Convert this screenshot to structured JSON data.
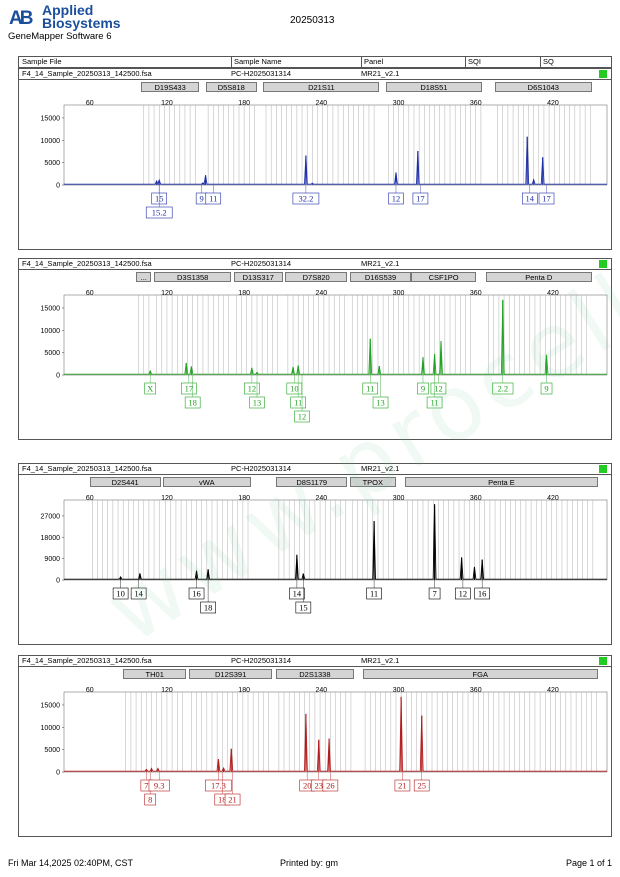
{
  "brand": {
    "mark": "AB",
    "line1": "Applied",
    "line2": "Biosystems",
    "software": "GeneMapper Software 6"
  },
  "report_title": "20250313",
  "header": {
    "sample_file": "Sample File",
    "sample_name": "Sample Name",
    "panel": "Panel",
    "sqi": "SQI",
    "sq": "SQ"
  },
  "footer": {
    "datetime": "Fri Mar 14,2025 02:40PM, CST",
    "printed_by": "Printed by: gm",
    "page": "Page 1 of 1"
  },
  "watermark": "www.procell.com.cn",
  "colors": {
    "blue": "#1f2fa8",
    "green": "#22a322",
    "black": "#000000",
    "red": "#b51c1c",
    "bins": "#b0b0b0",
    "sq_ok": "#22cc22"
  },
  "x_ticks": [
    60,
    120,
    180,
    240,
    300,
    360,
    420
  ],
  "panels": [
    {
      "file": "F4_14_Sample_20250313_142500.fsa",
      "sample": "PC-H2025031314",
      "panel_name": "MR21_v2.1",
      "dye": "blue",
      "loci": [
        {
          "name": "D19S433",
          "start": 100,
          "end": 145
        },
        {
          "name": "D5S818",
          "start": 150,
          "end": 190
        },
        {
          "name": "D21S11",
          "start": 195,
          "end": 285
        },
        {
          "name": "D18S51",
          "start": 290,
          "end": 365
        },
        {
          "name": "D6S1043",
          "start": 375,
          "end": 450
        }
      ],
      "y_ticks": [
        0,
        5000,
        10000,
        15000
      ],
      "ymax": 17000,
      "peaks": [
        {
          "x": 112,
          "h": 900
        },
        {
          "x": 114,
          "h": 1100
        },
        {
          "x": 148,
          "h": 500
        },
        {
          "x": 150,
          "h": 2200
        },
        {
          "x": 228,
          "h": 6600
        },
        {
          "x": 233,
          "h": 400
        },
        {
          "x": 298,
          "h": 2800
        },
        {
          "x": 315,
          "h": 7600
        },
        {
          "x": 400,
          "h": 10800
        },
        {
          "x": 405,
          "h": 1200
        },
        {
          "x": 412,
          "h": 6200
        }
      ],
      "labels": [
        {
          "x": 114,
          "row": 0,
          "text": "15"
        },
        {
          "x": 114,
          "row": 1,
          "text": "15.2"
        },
        {
          "x": 147,
          "row": 0,
          "text": "9"
        },
        {
          "x": 156,
          "row": 0,
          "text": "11"
        },
        {
          "x": 228,
          "row": 0,
          "text": "32.2"
        },
        {
          "x": 298,
          "row": 0,
          "text": "12"
        },
        {
          "x": 317,
          "row": 0,
          "text": "17"
        },
        {
          "x": 402,
          "row": 0,
          "text": "14"
        },
        {
          "x": 415,
          "row": 0,
          "text": "17"
        }
      ]
    },
    {
      "file": "F4_14_Sample_20250313_142500.fsa",
      "sample": "PC-H2025031314",
      "panel_name": "MR21_v2.1",
      "dye": "green",
      "loci": [
        {
          "name": "...",
          "start": 96,
          "end": 108
        },
        {
          "name": "D3S1358",
          "start": 110,
          "end": 170
        },
        {
          "name": "D13S317",
          "start": 172,
          "end": 210
        },
        {
          "name": "D7S820",
          "start": 212,
          "end": 260
        },
        {
          "name": "D16S539",
          "start": 262,
          "end": 310
        },
        {
          "name": "CSF1PO",
          "start": 310,
          "end": 360
        },
        {
          "name": "Penta D",
          "start": 368,
          "end": 450
        }
      ],
      "y_ticks": [
        0,
        5000,
        10000,
        15000
      ],
      "ymax": 17000,
      "peaks": [
        {
          "x": 107,
          "h": 900
        },
        {
          "x": 135,
          "h": 2700
        },
        {
          "x": 139,
          "h": 1900
        },
        {
          "x": 186,
          "h": 1600
        },
        {
          "x": 190,
          "h": 600
        },
        {
          "x": 218,
          "h": 1800
        },
        {
          "x": 222,
          "h": 2100
        },
        {
          "x": 278,
          "h": 8100
        },
        {
          "x": 285,
          "h": 2000
        },
        {
          "x": 319,
          "h": 4000
        },
        {
          "x": 328,
          "h": 4700
        },
        {
          "x": 333,
          "h": 7600
        },
        {
          "x": 381,
          "h": 16800
        },
        {
          "x": 415,
          "h": 4500
        }
      ],
      "labels": [
        {
          "x": 107,
          "row": 0,
          "text": "X"
        },
        {
          "x": 137,
          "row": 0,
          "text": "17"
        },
        {
          "x": 140,
          "row": 1,
          "text": "18"
        },
        {
          "x": 186,
          "row": 0,
          "text": "12"
        },
        {
          "x": 190,
          "row": 1,
          "text": "13"
        },
        {
          "x": 219,
          "row": 0,
          "text": "10"
        },
        {
          "x": 222,
          "row": 1,
          "text": "11"
        },
        {
          "x": 225,
          "row": 2,
          "text": "12"
        },
        {
          "x": 278,
          "row": 0,
          "text": "11"
        },
        {
          "x": 286,
          "row": 1,
          "text": "13"
        },
        {
          "x": 319,
          "row": 0,
          "text": "9"
        },
        {
          "x": 331,
          "row": 0,
          "text": "12"
        },
        {
          "x": 328,
          "row": 1,
          "text": "11"
        },
        {
          "x": 381,
          "row": 0,
          "text": "2.2"
        },
        {
          "x": 415,
          "row": 0,
          "text": "9"
        }
      ]
    },
    {
      "file": "F4_14_Sample_20250313_142500.fsa",
      "sample": "PC-H2025031314",
      "panel_name": "MR21_v2.1",
      "dye": "black",
      "loci": [
        {
          "name": "D2S441",
          "start": 60,
          "end": 115
        },
        {
          "name": "vWA",
          "start": 117,
          "end": 185
        },
        {
          "name": "D8S1179",
          "start": 205,
          "end": 260
        },
        {
          "name": "TPOX",
          "start": 262,
          "end": 298
        },
        {
          "name": "Penta E",
          "start": 305,
          "end": 455
        }
      ],
      "y_ticks": [
        0,
        9000,
        18000,
        27000
      ],
      "ymax": 32000,
      "peaks": [
        {
          "x": 84,
          "h": 1300
        },
        {
          "x": 99,
          "h": 2800
        },
        {
          "x": 143,
          "h": 3900
        },
        {
          "x": 152,
          "h": 4500
        },
        {
          "x": 221,
          "h": 10600
        },
        {
          "x": 226,
          "h": 2700
        },
        {
          "x": 281,
          "h": 24800
        },
        {
          "x": 328,
          "h": 31900
        },
        {
          "x": 349,
          "h": 9500
        },
        {
          "x": 359,
          "h": 5500
        },
        {
          "x": 365,
          "h": 8600
        }
      ],
      "labels": [
        {
          "x": 84,
          "row": 0,
          "text": "10"
        },
        {
          "x": 98,
          "row": 0,
          "text": "14"
        },
        {
          "x": 143,
          "row": 0,
          "text": "16"
        },
        {
          "x": 152,
          "row": 1,
          "text": "18"
        },
        {
          "x": 221,
          "row": 0,
          "text": "14"
        },
        {
          "x": 226,
          "row": 1,
          "text": "15"
        },
        {
          "x": 281,
          "row": 0,
          "text": "11"
        },
        {
          "x": 328,
          "row": 0,
          "text": "7"
        },
        {
          "x": 350,
          "row": 0,
          "text": "12"
        },
        {
          "x": 365,
          "row": 0,
          "text": "16"
        }
      ]
    },
    {
      "file": "F4_14_Sample_20250313_142500.fsa",
      "sample": "PC-H2025031314",
      "panel_name": "MR21_v2.1",
      "dye": "red",
      "loci": [
        {
          "name": "TH01",
          "start": 86,
          "end": 135
        },
        {
          "name": "D12S391",
          "start": 137,
          "end": 202
        },
        {
          "name": "D2S1338",
          "start": 205,
          "end": 265
        },
        {
          "name": "FGA",
          "start": 272,
          "end": 455
        }
      ],
      "y_ticks": [
        0,
        5000,
        10000,
        15000
      ],
      "ymax": 17000,
      "peaks": [
        {
          "x": 104,
          "h": 600
        },
        {
          "x": 108,
          "h": 800
        },
        {
          "x": 113,
          "h": 800
        },
        {
          "x": 160,
          "h": 2900
        },
        {
          "x": 164,
          "h": 900
        },
        {
          "x": 170,
          "h": 5200
        },
        {
          "x": 228,
          "h": 13000
        },
        {
          "x": 238,
          "h": 7200
        },
        {
          "x": 246,
          "h": 7500
        },
        {
          "x": 302,
          "h": 16800
        },
        {
          "x": 318,
          "h": 12600
        }
      ],
      "labels": [
        {
          "x": 104,
          "row": 0,
          "text": "7"
        },
        {
          "x": 107,
          "row": 1,
          "text": "8"
        },
        {
          "x": 114,
          "row": 0,
          "text": "9.3"
        },
        {
          "x": 160,
          "row": 0,
          "text": "17.3"
        },
        {
          "x": 163,
          "row": 1,
          "text": "18"
        },
        {
          "x": 171,
          "row": 1,
          "text": "21"
        },
        {
          "x": 229,
          "row": 0,
          "text": "20"
        },
        {
          "x": 238,
          "row": 0,
          "text": "23"
        },
        {
          "x": 247,
          "row": 0,
          "text": "26"
        },
        {
          "x": 303,
          "row": 0,
          "text": "21"
        },
        {
          "x": 318,
          "row": 0,
          "text": "25"
        }
      ]
    }
  ]
}
